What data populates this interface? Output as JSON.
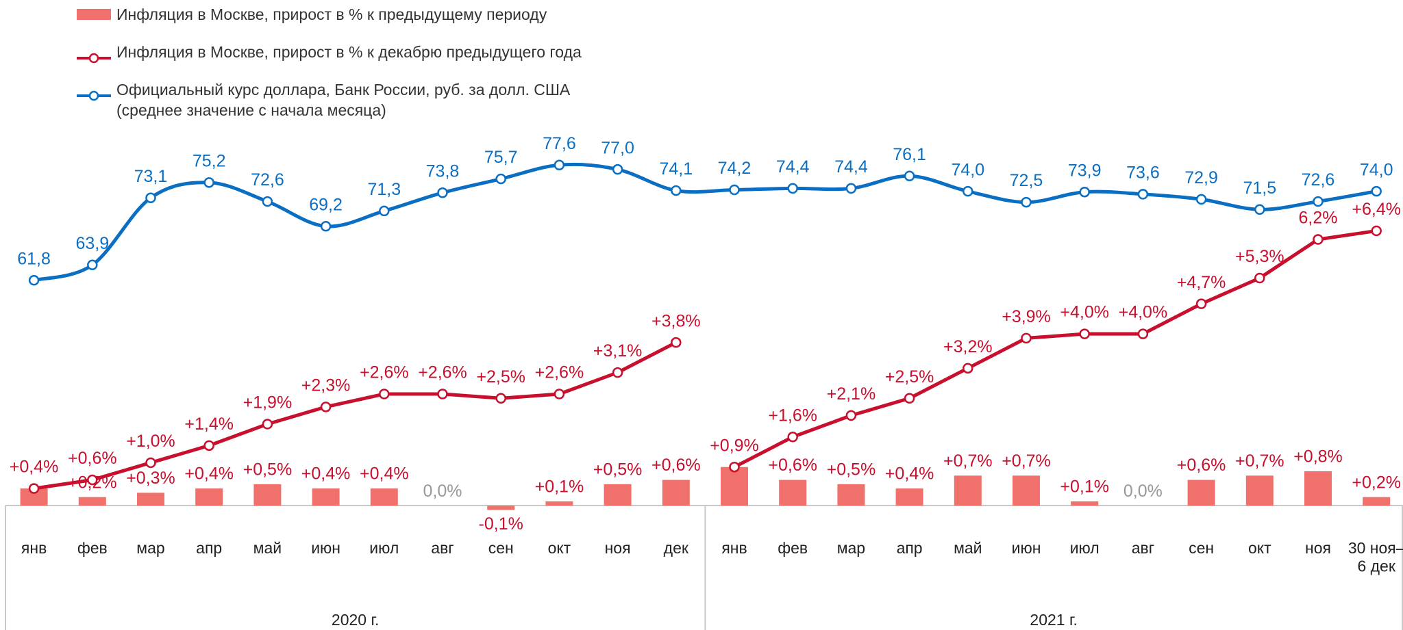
{
  "chart_data": {
    "type": "bar-line",
    "categories": [
      "янв",
      "фев",
      "мар",
      "апр",
      "май",
      "июн",
      "июл",
      "авг",
      "сен",
      "окт",
      "ноя",
      "дек",
      "янв",
      "фев",
      "мар",
      "апр",
      "май",
      "июн",
      "июл",
      "авг",
      "сен",
      "окт",
      "ноя",
      "30 ноя–\n6 дек"
    ],
    "groups": [
      {
        "label": "2020 г.",
        "start": 0,
        "end": 11
      },
      {
        "label": "2021 г.",
        "start": 12,
        "end": 23
      }
    ],
    "ylim": [
      -1,
      8
    ],
    "y2lim": [
      25,
      78
    ],
    "zero_label_color": "#999999",
    "series": [
      {
        "name": "Инфляция в Москве, прирост в % к предыдущему периоду",
        "type": "bar",
        "color": "#f0716b",
        "values": [
          0.4,
          0.2,
          0.3,
          0.4,
          0.5,
          0.4,
          0.4,
          0.0,
          -0.1,
          0.1,
          0.5,
          0.6,
          0.9,
          0.6,
          0.5,
          0.4,
          0.7,
          0.7,
          0.1,
          0.0,
          0.6,
          0.7,
          0.8,
          0.2
        ],
        "value_labels": [
          null,
          "+0,2%",
          "+0,3%",
          "+0,4%",
          "+0,5%",
          "+0,4%",
          "+0,4%",
          "0,0%",
          "-0,1%",
          "+0,1%",
          "+0,5%",
          "+0,6%",
          null,
          "+0,6%",
          "+0,5%",
          "+0,4%",
          "+0,7%",
          "+0,7%",
          "+0,1%",
          "0,0%",
          "+0,6%",
          "+0,7%",
          "+0,8%",
          "+0,2%"
        ]
      },
      {
        "name": "Инфляция в Москве, прирост в % к декабрю предыдущего года",
        "type": "line",
        "color": "#c8102e",
        "values": [
          0.4,
          0.6,
          1.0,
          1.4,
          1.9,
          2.3,
          2.6,
          2.6,
          2.5,
          2.6,
          3.1,
          3.8,
          0.9,
          1.6,
          2.1,
          2.5,
          3.2,
          3.9,
          4.0,
          4.0,
          4.7,
          5.3,
          6.2,
          6.4
        ],
        "value_labels": [
          "+0,4%",
          "+0,6%",
          "+1,0%",
          "+1,4%",
          "+1,9%",
          "+2,3%",
          "+2,6%",
          "+2,6%",
          "+2,5%",
          "+2,6%",
          "+3,1%",
          "+3,8%",
          "+0,9%",
          "+1,6%",
          "+2,1%",
          "+2,5%",
          "+3,2%",
          "+3,9%",
          "+4,0%",
          "+4,0%",
          "+4,7%",
          "+5,3%",
          "6,2%",
          "+6,4%"
        ]
      },
      {
        "name": "Официальный курс доллара, Банк России, руб. за долл. США\n(среднее значение с начала месяца)",
        "type": "line",
        "smooth": true,
        "axis": "y2",
        "color": "#0a6fc2",
        "values": [
          61.8,
          63.9,
          73.1,
          75.2,
          72.6,
          69.2,
          71.3,
          73.8,
          75.7,
          77.6,
          77.0,
          74.1,
          74.2,
          74.4,
          74.4,
          76.1,
          74.0,
          72.5,
          73.9,
          73.6,
          72.9,
          71.5,
          72.6,
          74.0
        ],
        "value_labels": [
          "61,8",
          "63,9",
          "73,1",
          "75,2",
          "72,6",
          "69,2",
          "71,3",
          "73,8",
          "75,7",
          "77,6",
          "77,0",
          "74,1",
          "74,2",
          "74,4",
          "74,4",
          "76,1",
          "74,0",
          "72,5",
          "73,9",
          "73,6",
          "72,9",
          "71,5",
          "72,6",
          "74,0"
        ]
      }
    ]
  }
}
